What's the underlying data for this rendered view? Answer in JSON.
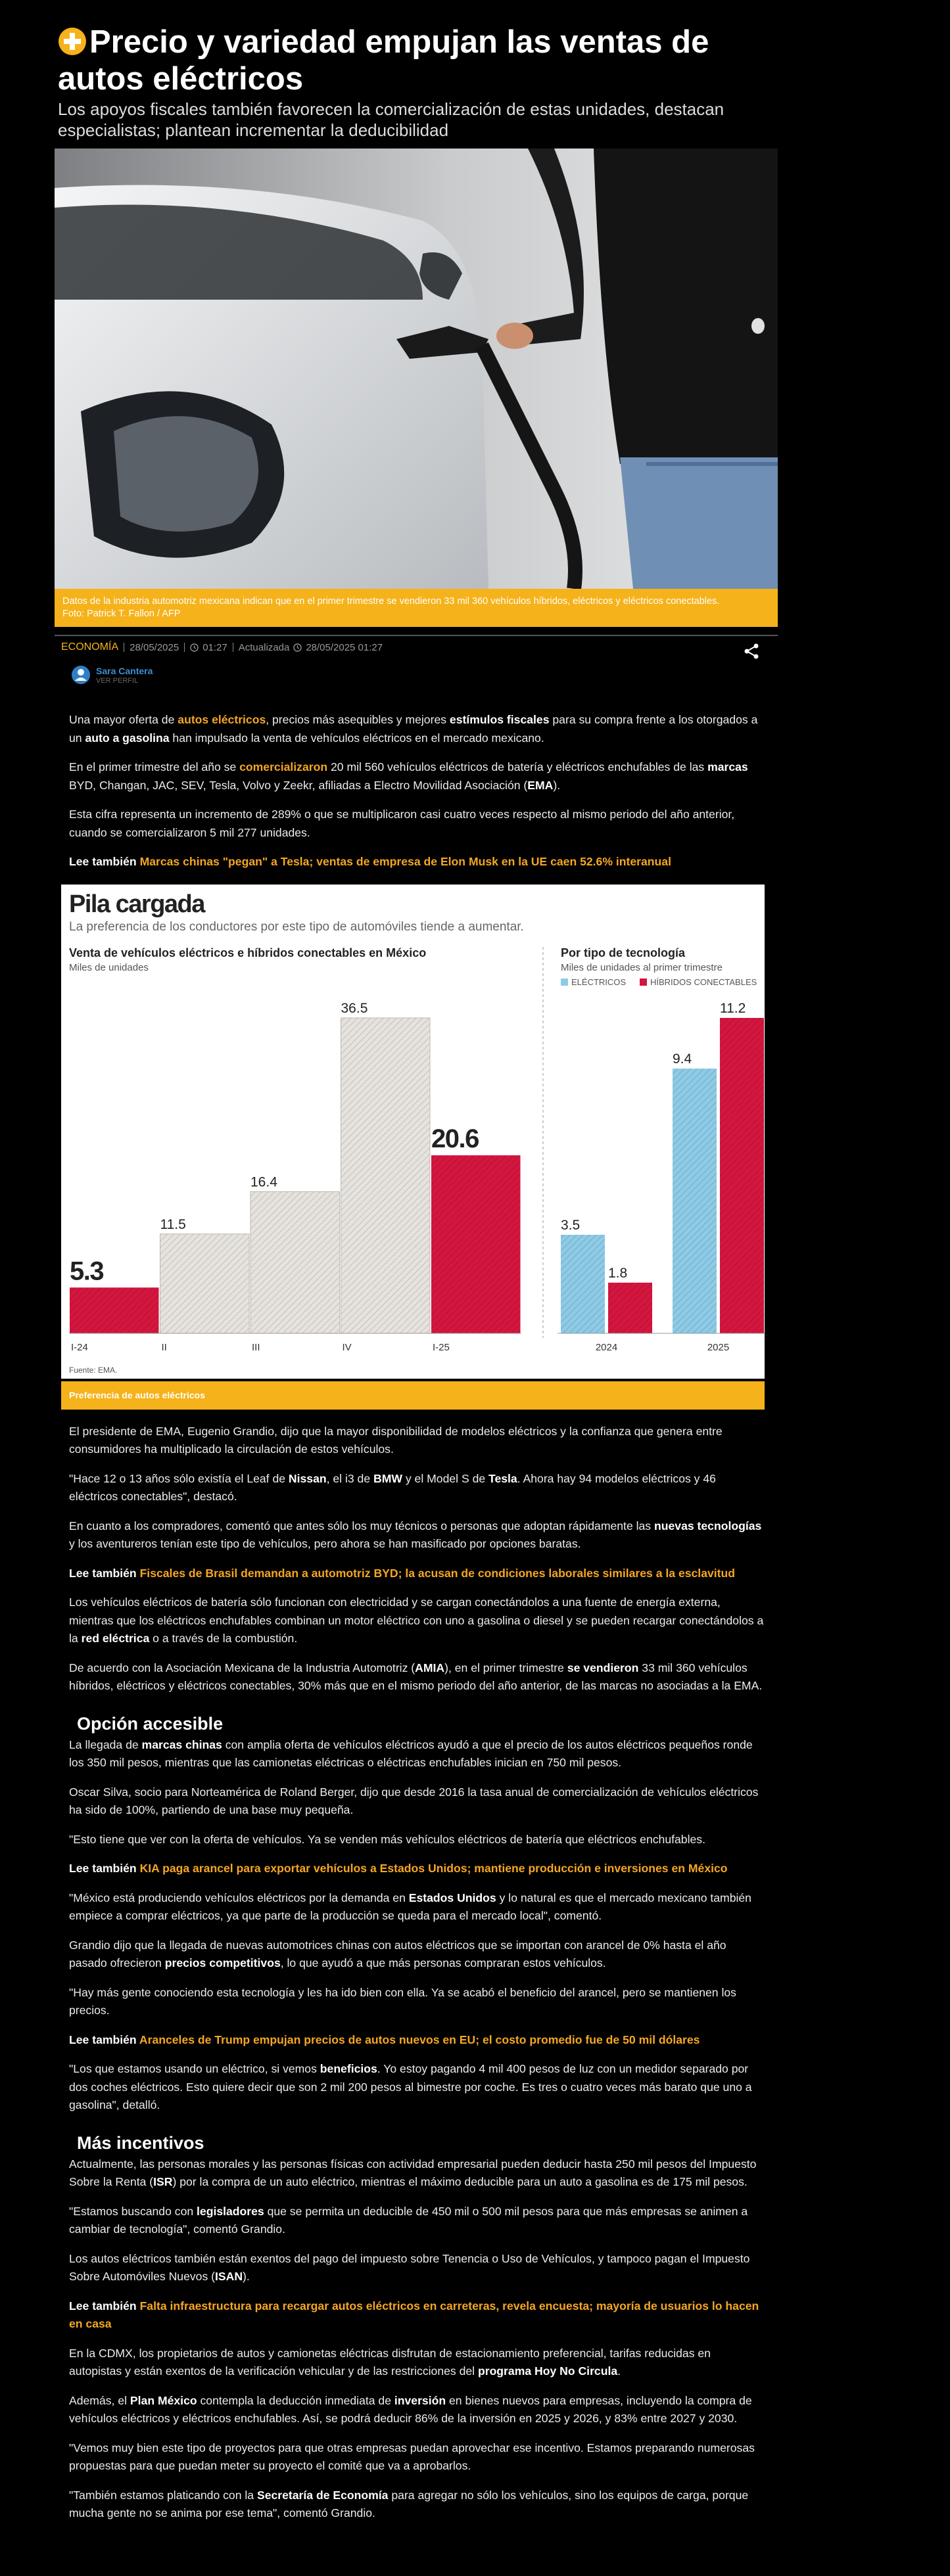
{
  "header": {
    "title": "Precio y variedad empujan las ventas de autos eléctricos",
    "subtitle": "Los apoyos fiscales también favorecen la comercialización de estas unidades, destacan especialistas; plantean incrementar la deducibilidad"
  },
  "photo": {
    "caption": "Datos de la industria automotriz mexicana indican que en el primer trimestre se vendieron 33 mil 360 vehículos híbridos, eléctricos y eléctricos conectables.",
    "credit": "Foto: Patrick T. Fallon / AFP"
  },
  "meta": {
    "section": "ECONOMÍA",
    "date": "28/05/2025",
    "time": "01:27",
    "updated_label": "Actualizada",
    "updated": "28/05/2025 01:27"
  },
  "author": {
    "name": "Sara Cantera",
    "profile": "VER PERFIL"
  },
  "body_before": [
    {
      "kind": "p",
      "runs": [
        "Una mayor oferta de ",
        {
          "a": "autos eléctricos"
        },
        ", precios más asequibles y mejores ",
        {
          "b": "estímulos fiscales"
        },
        " para su compra frente a los otorgados a un ",
        {
          "b": "auto a gasolina"
        },
        " han impulsado la venta de vehículos eléctricos en el mercado mexicano."
      ]
    },
    {
      "kind": "p",
      "runs": [
        "En el primer trimestre del año se ",
        {
          "a": "comercializaron"
        },
        " 20 mil 560 vehículos eléctricos de batería y eléctricos enchufables de las ",
        {
          "b": "marcas"
        },
        " BYD, Changan, JAC, SEV, Tesla, Volvo y Zeekr, afiliadas a Electro Movilidad Asociación (",
        {
          "b": "EMA"
        },
        ")."
      ]
    },
    {
      "kind": "p",
      "runs": [
        "Esta cifra representa un incremento de 289% o que se multiplicaron casi cuatro veces respecto al mismo periodo del año anterior, cuando se comercializaron 5 mil 277 unidades."
      ]
    },
    {
      "kind": "p",
      "runs": [
        {
          "b": "Lee también "
        },
        {
          "a": "Marcas chinas \"pegan\" a Tesla; ventas de empresa de Elon Musk en la UE caen 52.6% interanual"
        }
      ]
    }
  ],
  "graphic": {
    "title": "Pila cargada",
    "subtitle": "La preferencia de los conductores por este tipo de automóviles tiende a aumentar.",
    "source": "Fuente: EMA.",
    "footer": "Preferencia de autos eléctricos"
  },
  "chart_data": [
    {
      "type": "bar",
      "title": "Venta de vehículos eléctricos e híbridos conectables en México",
      "subtitle": "Miles de unidades",
      "categories": [
        "I-24",
        "II",
        "III",
        "IV",
        "I-25"
      ],
      "values": [
        5.3,
        11.5,
        16.4,
        36.5,
        20.6
      ],
      "colors": [
        "#d4163f",
        "#e6e3de",
        "#e6e3de",
        "#e6e3de",
        "#d4163f"
      ],
      "emphasis": [
        true,
        false,
        false,
        false,
        true
      ]
    },
    {
      "type": "grouped-bar",
      "title": "Por tipo de tecnología",
      "subtitle": "Miles de unidades al primer trimestre",
      "categories": [
        "2024",
        "2025"
      ],
      "series": [
        {
          "name": "ELÉCTRICOS",
          "color": "#8dcbe6",
          "values": [
            3.5,
            9.4
          ]
        },
        {
          "name": "HÍBRIDOS CONECTABLES",
          "color": "#d4163f",
          "values": [
            1.8,
            11.2
          ]
        }
      ]
    }
  ],
  "body_after": [
    {
      "kind": "p",
      "runs": [
        "El presidente de EMA, Eugenio Grandio, dijo que la mayor disponibilidad de modelos eléctricos y la confianza que genera entre consumidores ha multiplicado la circulación de estos vehículos."
      ]
    },
    {
      "kind": "p",
      "runs": [
        "\"Hace 12 o 13 años sólo existía el Leaf de ",
        {
          "b": "Nissan"
        },
        ", el i3 de ",
        {
          "b": "BMW"
        },
        " y el Model S de ",
        {
          "b": "Tesla"
        },
        ". Ahora hay 94 modelos eléctricos y 46 eléctricos conectables\", destacó."
      ]
    },
    {
      "kind": "p",
      "runs": [
        "En cuanto a los compradores, comentó que antes sólo los muy técnicos o personas que adoptan rápidamente las ",
        {
          "b": "nuevas tecnologías"
        },
        " y los aventureros tenían este tipo de vehículos, pero ahora se han masificado por opciones baratas."
      ]
    },
    {
      "kind": "p",
      "runs": [
        {
          "b": "Lee también "
        },
        {
          "a": "Fiscales de Brasil demandan a automotriz BYD; la acusan de condiciones laborales similares a la esclavitud"
        }
      ]
    },
    {
      "kind": "p",
      "runs": [
        "Los vehículos eléctricos de batería sólo funcionan con electricidad y se cargan conectándolos a una fuente de energía externa, mientras que los eléctricos enchufables combinan un motor eléctrico con uno a gasolina o diesel y se pueden recargar conectándolos a la ",
        {
          "b": "red eléctrica"
        },
        " o a través de la combustión."
      ]
    },
    {
      "kind": "p",
      "runs": [
        "De acuerdo con la Asociación Mexicana de la Industria Automotriz (",
        {
          "b": "AMIA"
        },
        "), en el primer trimestre ",
        {
          "b": "se vendieron"
        },
        " 33 mil 360 vehículos híbridos, eléctricos y eléctricos conectables, 30% más que en el mismo periodo del año anterior, de las marcas no asociadas a la EMA."
      ]
    },
    {
      "kind": "h",
      "runs": [
        "Opción accesible"
      ]
    },
    {
      "kind": "p",
      "runs": [
        "La llegada de ",
        {
          "b": "marcas chinas"
        },
        " con amplia oferta de vehículos eléctricos ayudó a que el precio de los autos eléctricos pequeños ronde los 350 mil pesos, mientras que las camionetas eléctricas o eléctricas enchufables inician en 750 mil pesos."
      ]
    },
    {
      "kind": "p",
      "runs": [
        "Oscar Silva, socio para Norteamérica de Roland Berger, dijo que desde 2016 la tasa anual de comercialización de vehículos eléctricos ha sido de 100%, partiendo de una base muy pequeña."
      ]
    },
    {
      "kind": "p",
      "runs": [
        "\"Esto tiene que ver con la oferta de vehículos. Ya se venden más vehículos eléctricos de batería que eléctricos enchufables."
      ]
    },
    {
      "kind": "p",
      "runs": [
        {
          "b": "Lee también "
        },
        {
          "a": "KIA paga arancel para exportar vehículos a Estados Unidos; mantiene producción e inversiones en México"
        }
      ]
    },
    {
      "kind": "p",
      "runs": [
        "\"México está produciendo vehículos eléctricos por la demanda en ",
        {
          "b": "Estados Unidos"
        },
        " y lo natural es que el mercado mexicano también empiece a comprar eléctricos, ya que parte de la producción se queda para el mercado local\", comentó."
      ]
    },
    {
      "kind": "p",
      "runs": [
        "Grandio dijo que la llegada de nuevas automotrices chinas con autos eléctricos que se importan con arancel de 0% hasta el año pasado ofrecieron ",
        {
          "b": "precios competitivos"
        },
        ", lo que ayudó a que más personas compraran estos vehículos."
      ]
    },
    {
      "kind": "p",
      "runs": [
        "\"Hay más gente conociendo esta tecnología y les ha ido bien con ella. Ya se acabó el beneficio del arancel, pero se mantienen los precios."
      ]
    },
    {
      "kind": "p",
      "runs": [
        {
          "b": "Lee también "
        },
        {
          "a": "Aranceles de Trump empujan precios de autos nuevos en EU; el costo promedio fue de 50 mil dólares"
        }
      ]
    },
    {
      "kind": "p",
      "runs": [
        "\"Los que estamos usando un eléctrico, si vemos ",
        {
          "b": "beneficios"
        },
        ". Yo estoy pagando 4 mil 400 pesos de luz con un medidor separado por dos coches eléctricos. Esto quiere decir que son 2 mil 200 pesos al bimestre por coche. Es tres o cuatro veces más barato que uno a gasolina\", detalló."
      ]
    },
    {
      "kind": "h",
      "runs": [
        "Más incentivos"
      ]
    },
    {
      "kind": "p",
      "runs": [
        "Actualmente, las personas morales y las personas físicas con actividad empresarial pueden deducir hasta 250 mil pesos del Impuesto Sobre la Renta (",
        {
          "b": "ISR"
        },
        ") por la compra de un auto eléctrico, mientras el máximo deducible para un auto a gasolina es de 175 mil pesos."
      ]
    },
    {
      "kind": "p",
      "runs": [
        "\"Estamos buscando con ",
        {
          "b": "legisladores"
        },
        " que se permita un deducible de 450 mil o 500 mil pesos para que más empresas se animen a cambiar de tecnología\", comentó Grandio."
      ]
    },
    {
      "kind": "p",
      "runs": [
        "Los autos eléctricos también están exentos del pago del impuesto sobre Tenencia o Uso de Vehículos, y tampoco pagan el Impuesto Sobre Automóviles Nuevos (",
        {
          "b": "ISAN"
        },
        ")."
      ]
    },
    {
      "kind": "p",
      "runs": [
        {
          "b": "Lee también "
        },
        {
          "a": "Falta infraestructura para recargar autos eléctricos en carreteras, revela encuesta; mayoría de usuarios lo hacen en casa"
        }
      ]
    },
    {
      "kind": "p",
      "runs": [
        "En la CDMX, los propietarios de autos y camionetas eléctricas disfrutan de estacionamiento preferencial, tarifas reducidas en autopistas y están exentos de la verificación vehicular y de las restricciones del ",
        {
          "b": "programa Hoy No Circula"
        },
        "."
      ]
    },
    {
      "kind": "p",
      "runs": [
        "Además, el ",
        {
          "b": "Plan México"
        },
        " contempla la deducción inmediata de ",
        {
          "b": "inversión"
        },
        " en bienes nuevos para empresas, incluyendo la compra de vehículos eléctricos y eléctricos enchufables. Así, se podrá deducir 86% de la inversión en 2025 y 2026, y 83% entre 2027 y 2030."
      ]
    },
    {
      "kind": "p",
      "runs": [
        "\"Vemos muy bien este tipo de proyectos para que otras empresas puedan aprovechar ese incentivo. Estamos preparando numerosas propuestas para que puedan meter su proyecto el comité que va a aprobarlos."
      ]
    },
    {
      "kind": "p",
      "runs": [
        "\"También estamos platicando con la ",
        {
          "b": "Secretaría de Economía"
        },
        " para agregar no sólo los vehículos, sino los equipos de carga, porque mucha gente no se anima por ese tema\", comentó Grandio."
      ]
    }
  ]
}
